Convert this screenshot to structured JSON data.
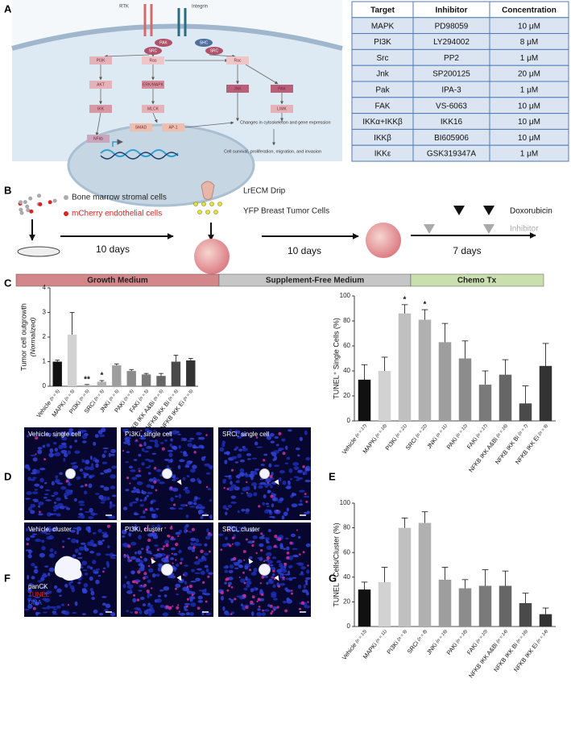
{
  "panel_labels": [
    "A",
    "B",
    "C",
    "D",
    "E",
    "F",
    "G"
  ],
  "pathway": {
    "receptors": [
      "RTK",
      "Integrin"
    ],
    "nodes": [
      "PAK",
      "SRC",
      "SHC",
      "SRC",
      "PI3K",
      "Ras",
      "Rac",
      "AKT",
      "ERK/MAPK",
      "JNK",
      "PAK",
      "IKK",
      "MLCK",
      "LIMK",
      "NFkb",
      "SMAD",
      "AP-1"
    ],
    "outcomes": [
      "Changes in cytoskeleton and gene expression",
      "Cell survival, proliferation, migration, and invasion"
    ]
  },
  "table": {
    "header": [
      "Target",
      "Inhibitor",
      "Concentration"
    ],
    "rows": [
      [
        "MAPK",
        "PD98059",
        "10 μM"
      ],
      [
        "PI3K",
        "LY294002",
        "8 μM"
      ],
      [
        "Src",
        "PP2",
        "1 μM"
      ],
      [
        "Jnk",
        "SP200125",
        "20 μM"
      ],
      [
        "Pak",
        "IPA-3",
        "1 μM"
      ],
      [
        "FAK",
        "VS-6063",
        "10 μM"
      ],
      [
        "IKKα+IKKβ",
        "IKK16",
        "10 μM"
      ],
      [
        "IKKβ",
        "BI605906",
        "10 μM"
      ],
      [
        "IKKε",
        "GSK319347A",
        "1 μM"
      ]
    ]
  },
  "timeline": {
    "cells": [
      "Bone marrow stromal cells",
      "mCherry endothelial cells"
    ],
    "additions": [
      "LrECM Drip",
      "YFP Breast Tumor Cells"
    ],
    "durations": [
      "10 days",
      "10 days",
      "7 days"
    ],
    "treatments": [
      "Doxorubicin",
      "Inhibitor"
    ],
    "phases": [
      "Growth Medium",
      "Supplement-Free Medium",
      "Chemo Tx"
    ]
  },
  "micrographs": {
    "single": [
      "Vehicle, single cell",
      "PI3Ki, single cell",
      "SRCi, single cell"
    ],
    "cluster": [
      "Vehicle, cluster",
      "PI3Ki, cluster",
      "SRCi, cluster"
    ],
    "stain_legend": [
      "panCK",
      "TUNEL",
      "DNA"
    ]
  },
  "chart_data": [
    {
      "type": "bar",
      "y_label": "Tumor cell outgrowth",
      "y_label_sub": "(Normalized)",
      "categories": [
        "Vehicle",
        "MAPKi",
        "PI3Ki",
        "SRCi",
        "JNKi",
        "PAKi",
        "FAKi",
        "NFKB IKK A&Bi",
        "NFKB IKK Bi",
        "NFKB IKK Ei"
      ],
      "n_labels": [
        "(n = 5)",
        "(n = 5)",
        "(n = 5)",
        "(n = 5)",
        "(n = 5)",
        "(n = 5)",
        "(n = 5)",
        "(n = 5)",
        "(n = 5)",
        "(n = 5)"
      ],
      "values": [
        1.0,
        2.1,
        0.05,
        0.18,
        0.85,
        0.62,
        0.48,
        0.42,
        1.0,
        1.05
      ],
      "errors": [
        0.06,
        0.9,
        0.02,
        0.05,
        0.06,
        0.06,
        0.04,
        0.1,
        0.26,
        0.08
      ],
      "significance": [
        null,
        null,
        "**",
        "*",
        null,
        null,
        null,
        null,
        null,
        null
      ],
      "colors": [
        "#111111",
        "#d2d2d2",
        "#c0c0c0",
        "#b0b0b0",
        "#9e9e9e",
        "#8c8c8c",
        "#7a7a7a",
        "#666666",
        "#4a4a4a",
        "#333333"
      ],
      "ylim": [
        0,
        4
      ],
      "yticks": [
        0,
        1,
        2,
        3,
        4
      ]
    },
    {
      "type": "bar",
      "y_label": "TUNEL⁺ Single Cells (%)",
      "categories": [
        "Vehicle",
        "MAPKi",
        "PI3Ki",
        "SRCi",
        "JNKi",
        "PAKi",
        "FAKi",
        "NFKB IKK A&Bi",
        "NFKB IKK Bi",
        "NFKB IKK Ei"
      ],
      "n_labels": [
        "(n = 17)",
        "(n = 18)",
        "(n = 21)",
        "(n = 22)",
        "(n = 11)",
        "(n = 12)",
        "(n = 17)",
        "(n = 16)",
        "(n = 7)",
        "(n = 9)"
      ],
      "values": [
        33,
        40,
        86,
        81,
        63,
        50,
        29,
        37,
        14,
        44
      ],
      "errors": [
        12,
        11,
        7,
        8,
        15,
        14,
        11,
        12,
        14,
        18
      ],
      "significance": [
        null,
        null,
        "*",
        "*",
        null,
        null,
        null,
        null,
        null,
        null
      ],
      "colors": [
        "#111111",
        "#d2d2d2",
        "#c0c0c0",
        "#b0b0b0",
        "#9e9e9e",
        "#8c8c8c",
        "#7a7a7a",
        "#666666",
        "#4a4a4a",
        "#333333"
      ],
      "ylim": [
        0,
        100
      ],
      "yticks": [
        0,
        20,
        40,
        60,
        80,
        100
      ]
    },
    {
      "type": "bar",
      "y_label": "TUNEL⁺ Cells/Cluster (%)",
      "categories": [
        "Vehicle",
        "MAPKi",
        "PI3Ki",
        "SRCi",
        "JNKi",
        "PAKi",
        "FAKi",
        "NFKB IKK A&Bi",
        "NFKB IKK Bi",
        "NFKB IKK Ei"
      ],
      "n_labels": [
        "(n = 13)",
        "(n = 11)",
        "(n = 9)",
        "(n = 8)",
        "(n = 19)",
        "(n = 18)",
        "(n = 10)",
        "(n = 14)",
        "(n = 16)",
        "(n = 14)"
      ],
      "values": [
        30,
        36,
        80,
        84,
        38,
        31,
        33,
        33,
        19,
        10
      ],
      "errors": [
        6,
        12,
        8,
        9,
        10,
        7,
        13,
        12,
        8,
        5
      ],
      "significance": [
        null,
        null,
        null,
        null,
        null,
        null,
        null,
        null,
        null,
        null
      ],
      "colors": [
        "#111111",
        "#d2d2d2",
        "#c0c0c0",
        "#b0b0b0",
        "#9e9e9e",
        "#8c8c8c",
        "#7a7a7a",
        "#666666",
        "#4a4a4a",
        "#333333"
      ],
      "ylim": [
        0,
        100
      ],
      "yticks": [
        0,
        20,
        40,
        60,
        80,
        100
      ]
    }
  ]
}
